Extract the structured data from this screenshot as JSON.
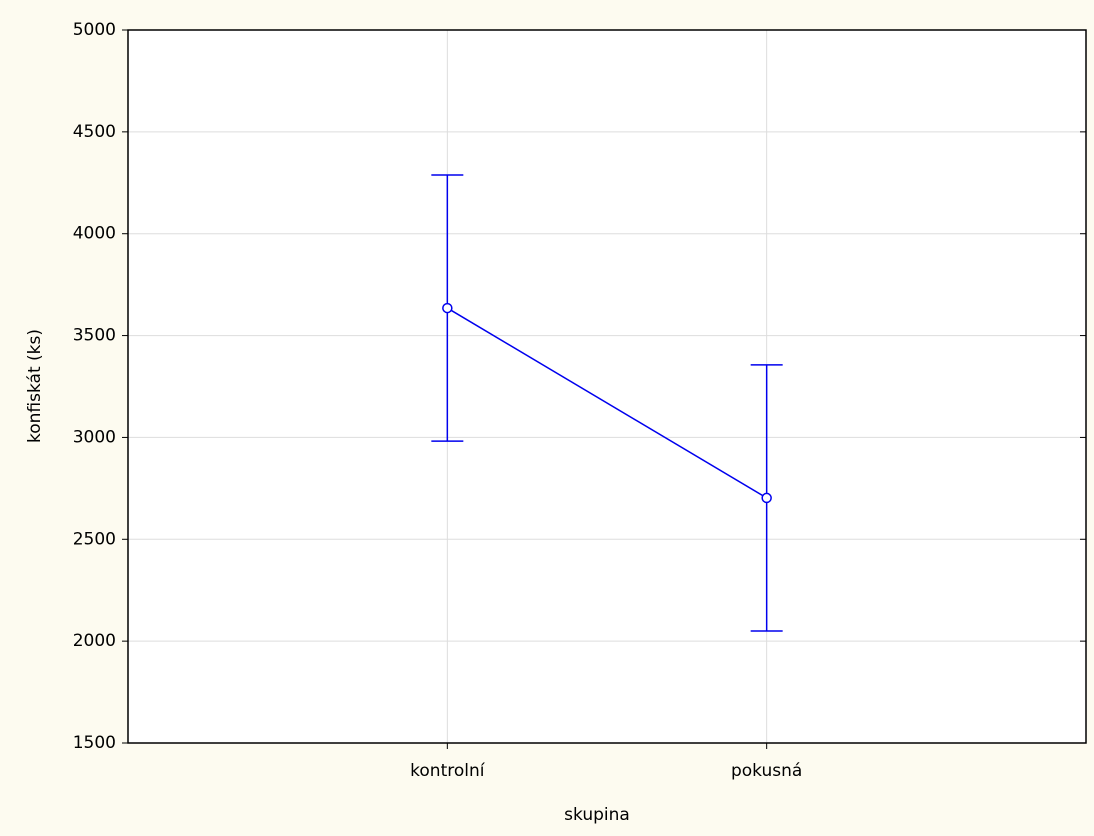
{
  "chart_data": {
    "type": "errorbar",
    "x_label": "skupina",
    "y_label": "konfiskát (ks)",
    "categories": [
      "kontrolní",
      "pokusná"
    ],
    "series": [
      {
        "color": "#0000ee",
        "values": [
          3635,
          2703
        ],
        "errors": [
          653,
          653
        ]
      }
    ],
    "ylim": [
      1500,
      5000
    ],
    "yticks": [
      1500,
      2000,
      2500,
      3000,
      3500,
      4000,
      4500,
      5000
    ],
    "grid": true
  }
}
